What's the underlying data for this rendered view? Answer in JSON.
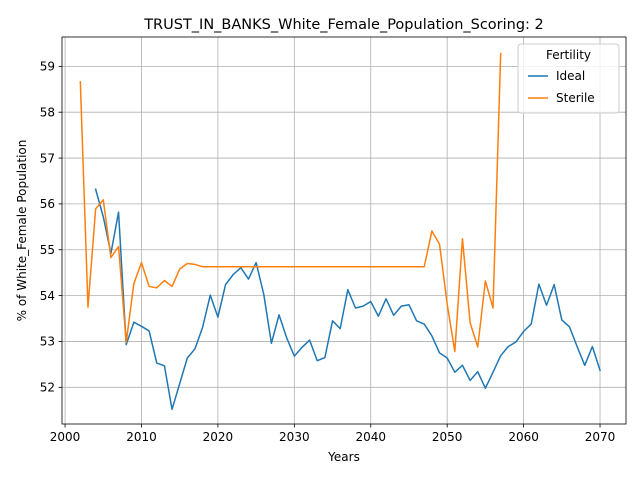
{
  "chart_data": {
    "type": "line",
    "title": "TRUST_IN_BANKS_White_Female_Population_Scoring: 2",
    "xlabel": "Years",
    "ylabel": "% of White_Female Population",
    "xlim": [
      1999.6,
      2073.4
    ],
    "ylim": [
      51.2,
      59.64
    ],
    "xticks": [
      2000,
      2010,
      2020,
      2030,
      2040,
      2050,
      2060,
      2070
    ],
    "yticks": [
      52,
      53,
      54,
      55,
      56,
      57,
      58,
      59
    ],
    "grid": true,
    "legend": {
      "title": "Fertility",
      "position": "top-right"
    },
    "series": [
      {
        "name": "Ideal",
        "color": "#1f77b4",
        "x": [
          2004,
          2005,
          2006,
          2007,
          2008,
          2009,
          2010,
          2011,
          2012,
          2013,
          2014,
          2015,
          2016,
          2017,
          2018,
          2019,
          2020,
          2021,
          2022,
          2023,
          2024,
          2025,
          2026,
          2027,
          2028,
          2029,
          2030,
          2031,
          2032,
          2033,
          2034,
          2035,
          2036,
          2037,
          2038,
          2039,
          2040,
          2041,
          2042,
          2043,
          2044,
          2045,
          2046,
          2047,
          2048,
          2049,
          2050,
          2051,
          2052,
          2053,
          2054,
          2055,
          2056,
          2057,
          2058,
          2059,
          2060,
          2061,
          2062,
          2063,
          2064,
          2065,
          2066,
          2067,
          2068,
          2069,
          2070
        ],
        "values": [
          56.32,
          55.72,
          54.92,
          55.82,
          52.93,
          53.42,
          53.33,
          53.23,
          52.53,
          52.47,
          51.52,
          52.08,
          52.64,
          52.84,
          53.31,
          54.01,
          53.53,
          54.24,
          54.46,
          54.61,
          54.36,
          54.72,
          54.03,
          52.96,
          53.58,
          53.08,
          52.68,
          52.87,
          53.03,
          52.58,
          52.65,
          53.45,
          53.28,
          54.13,
          53.73,
          53.77,
          53.87,
          53.55,
          53.93,
          53.57,
          53.77,
          53.8,
          53.45,
          53.38,
          53.12,
          52.75,
          52.64,
          52.33,
          52.48,
          52.15,
          52.34,
          51.98,
          52.33,
          52.69,
          52.89,
          52.99,
          53.22,
          53.38,
          54.25,
          53.79,
          54.24,
          53.47,
          53.32,
          52.89,
          52.48,
          52.89,
          52.37
        ]
      },
      {
        "name": "Sterile",
        "color": "#ff7f0e",
        "x": [
          2002,
          2003,
          2004,
          2005,
          2006,
          2007,
          2008,
          2009,
          2010,
          2011,
          2012,
          2013,
          2014,
          2015,
          2016,
          2017,
          2018,
          2019,
          2020,
          2021,
          2022,
          2023,
          2024,
          2025,
          2026,
          2027,
          2028,
          2029,
          2030,
          2031,
          2032,
          2033,
          2034,
          2035,
          2036,
          2037,
          2038,
          2039,
          2040,
          2041,
          2042,
          2043,
          2044,
          2045,
          2046,
          2047,
          2048,
          2049,
          2050,
          2051,
          2052,
          2053,
          2054,
          2055,
          2056,
          2057
        ],
        "values": [
          58.66,
          53.75,
          55.89,
          56.09,
          54.83,
          55.07,
          52.98,
          54.26,
          54.72,
          54.2,
          54.17,
          54.33,
          54.2,
          54.58,
          54.7,
          54.68,
          54.63,
          54.63,
          54.63,
          54.63,
          54.63,
          54.63,
          54.63,
          54.63,
          54.63,
          54.63,
          54.63,
          54.63,
          54.63,
          54.63,
          54.63,
          54.63,
          54.63,
          54.63,
          54.63,
          54.63,
          54.63,
          54.63,
          54.63,
          54.63,
          54.63,
          54.63,
          54.63,
          54.63,
          54.63,
          54.63,
          55.41,
          55.12,
          53.82,
          52.78,
          55.24,
          53.41,
          52.88,
          54.32,
          53.73,
          59.28
        ]
      }
    ]
  }
}
